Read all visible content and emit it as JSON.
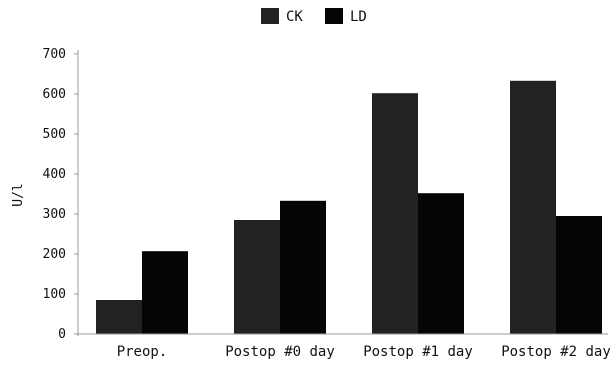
{
  "chart_data": {
    "type": "bar",
    "title": "",
    "xlabel": "",
    "ylabel": "U/l",
    "ylim": [
      0,
      700
    ],
    "yticks": [
      0,
      100,
      200,
      300,
      400,
      500,
      600,
      700
    ],
    "grid": false,
    "legend_position": "top",
    "categories": [
      "Preop.",
      "Postop #0 day",
      "Postop #1 day",
      "Postop #2 day"
    ],
    "series": [
      {
        "name": "CK",
        "values": [
          85,
          285,
          602,
          633
        ],
        "color": "#222222"
      },
      {
        "name": "LD",
        "values": [
          207,
          333,
          352,
          295
        ],
        "color": "#050505"
      }
    ]
  }
}
